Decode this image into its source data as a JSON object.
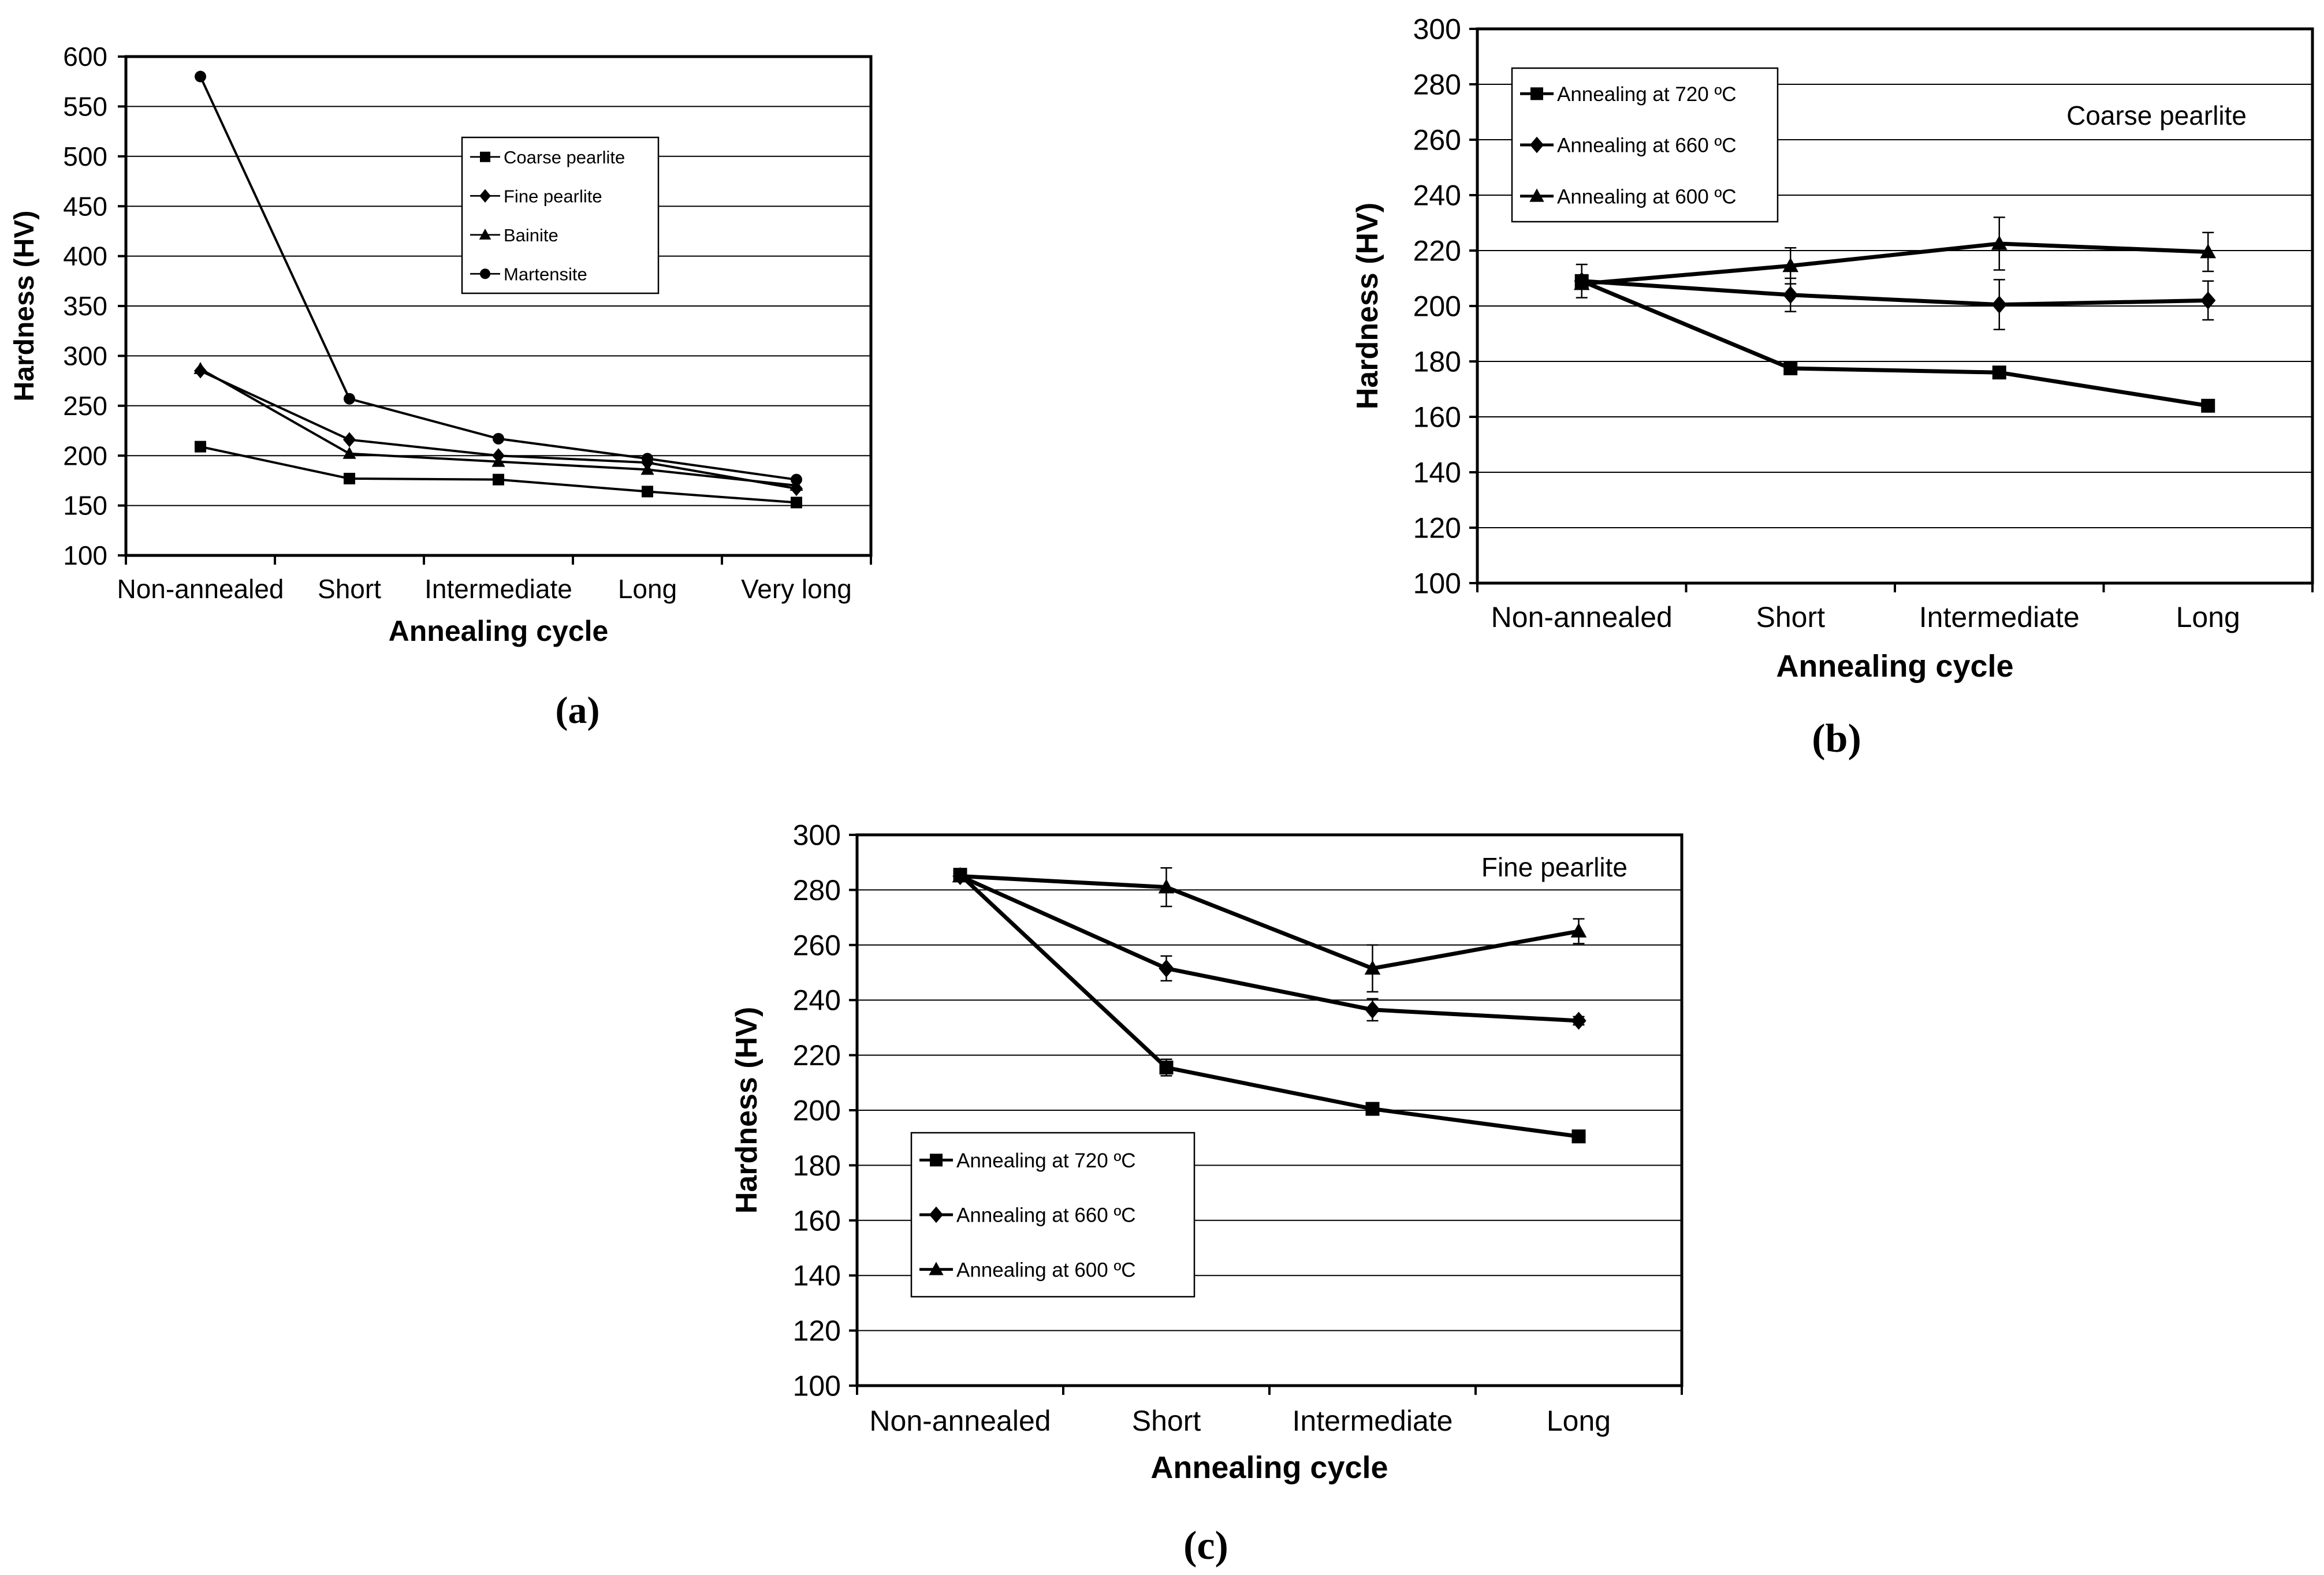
{
  "chart_data": [
    {
      "type": "line",
      "panel_label": "(a)",
      "title": "",
      "xlabel": "Annealing cycle",
      "ylabel": "Hardness (HV)",
      "categories": [
        "Non-annealed",
        "Short",
        "Intermediate",
        "Long",
        "Very long"
      ],
      "ylim": [
        100,
        600
      ],
      "yticks": [
        100,
        150,
        200,
        250,
        300,
        350,
        400,
        450,
        500,
        550,
        600
      ],
      "grid": true,
      "legend_position": "center-right",
      "series": [
        {
          "name": "Coarse pearlite",
          "marker": "square",
          "values": [
            209,
            177,
            176,
            164,
            153
          ]
        },
        {
          "name": "Fine pearlite",
          "marker": "diamond",
          "values": [
            285,
            216,
            200,
            193,
            167
          ]
        },
        {
          "name": "Bainite",
          "marker": "triangle",
          "values": [
            287,
            202,
            194,
            186,
            170
          ]
        },
        {
          "name": "Martensite",
          "marker": "circle",
          "values": [
            580,
            257,
            217,
            197,
            176
          ]
        }
      ]
    },
    {
      "type": "line",
      "panel_label": "(b)",
      "title": "",
      "annotation": "Coarse pearlite",
      "xlabel": "Annealing cycle",
      "ylabel": "Hardness (HV)",
      "categories": [
        "Non-annealed",
        "Short",
        "Intermediate",
        "Long"
      ],
      "ylim": [
        100,
        300
      ],
      "yticks": [
        100,
        120,
        140,
        160,
        180,
        200,
        220,
        240,
        260,
        280,
        300
      ],
      "grid": true,
      "legend_position": "top-left",
      "series": [
        {
          "name": "Annealing at 720 ºC",
          "marker": "square",
          "values": [
            209,
            177.5,
            176,
            164
          ],
          "errors": [
            0,
            1,
            1,
            1
          ]
        },
        {
          "name": "Annealing at 660 ºC",
          "marker": "diamond",
          "values": [
            209,
            204,
            200.5,
            202
          ],
          "errors": [
            6,
            6,
            9,
            7
          ]
        },
        {
          "name": "Annealing at 600 ºC",
          "marker": "triangle",
          "values": [
            208,
            214.5,
            222.5,
            219.5
          ],
          "errors": [
            0,
            6.5,
            9.5,
            7
          ]
        }
      ]
    },
    {
      "type": "line",
      "panel_label": "(c)",
      "title": "",
      "annotation": "Fine pearlite",
      "xlabel": "Annealing cycle",
      "ylabel": "Hardness (HV)",
      "categories": [
        "Non-annealed",
        "Short",
        "Intermediate",
        "Long"
      ],
      "ylim": [
        100,
        300
      ],
      "yticks": [
        100,
        120,
        140,
        160,
        180,
        200,
        220,
        240,
        260,
        280,
        300
      ],
      "grid": true,
      "legend_position": "bottom-left",
      "series": [
        {
          "name": "Annealing at 720 ºC",
          "marker": "square",
          "values": [
            285.5,
            215.5,
            200.5,
            190.5
          ],
          "errors": [
            1.5,
            3,
            2,
            1
          ]
        },
        {
          "name": "Annealing at 660 ºC",
          "marker": "diamond",
          "values": [
            285,
            251.5,
            236.5,
            232.5
          ],
          "errors": [
            1.5,
            4.5,
            4,
            1.5
          ]
        },
        {
          "name": "Annealing at 600 ºC",
          "marker": "triangle",
          "values": [
            285,
            281,
            251.5,
            265
          ],
          "errors": [
            1.5,
            7,
            8.5,
            4.5
          ]
        }
      ]
    }
  ]
}
